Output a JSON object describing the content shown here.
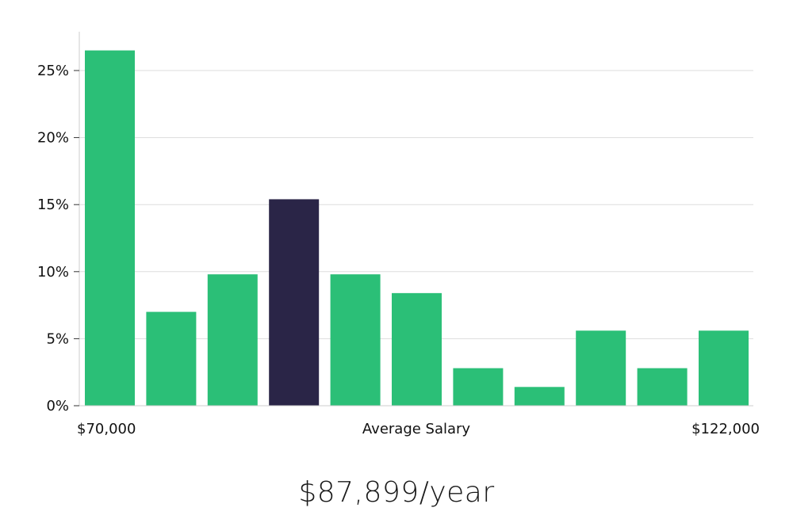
{
  "chart_data": {
    "type": "bar",
    "categories": [
      "1",
      "2",
      "3",
      "4",
      "5",
      "6",
      "7",
      "8",
      "9",
      "10",
      "11"
    ],
    "values": [
      26.5,
      7.0,
      9.8,
      15.4,
      9.8,
      8.4,
      2.8,
      1.4,
      5.6,
      2.8,
      5.6
    ],
    "highlight_index": 3,
    "ylim": [
      0,
      28
    ],
    "yticks": [
      0,
      5,
      10,
      15,
      20,
      25
    ],
    "ytick_labels": [
      "0%",
      "5%",
      "10%",
      "15%",
      "20%",
      "25%"
    ],
    "xlabel": "Average Salary",
    "x_min_label": "$70,000",
    "x_max_label": "$122,000",
    "grid": true,
    "colors": {
      "bar": "#2bbf77",
      "highlight": "#2a2547",
      "grid": "#dddddd",
      "axis": "#cccccc"
    }
  },
  "summary": {
    "salary_text": "$87,899/year"
  }
}
